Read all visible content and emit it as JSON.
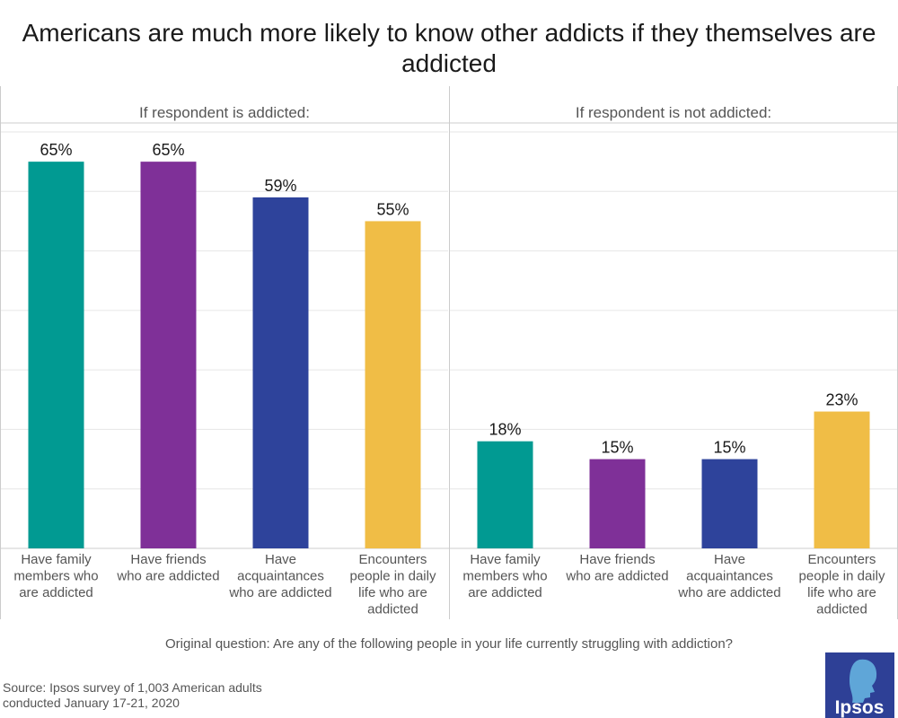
{
  "title": "Americans are much more likely to know other addicts if they themselves are addicted",
  "question": "Original question: Are any of the following people in your life currently struggling with addiction?",
  "source_line1": "Source: Ipsos survey of 1,003 American adults",
  "source_line2": "conducted January 17-21, 2020",
  "logo_text": "Ipsos",
  "colors": {
    "teal": "#019A92",
    "purple": "#7F3098",
    "blue": "#2E439B",
    "yellow": "#F0BD46",
    "grid": "#e6e6e6",
    "panel_border": "#cccccc",
    "logo_bg": "#2E4096"
  },
  "chart_data": [
    {
      "type": "bar",
      "panel_label": "If respondent is addicted:",
      "categories": [
        "Have family members who are addicted",
        "Have friends who are addicted",
        "Have acquaintances who are addicted",
        "Encounters people in daily life who are addicted"
      ],
      "category_lines": [
        [
          "Have family",
          "members who",
          "are addicted"
        ],
        [
          "Have friends",
          "who are addicted"
        ],
        [
          "Have",
          "acquaintances",
          "who are addicted"
        ],
        [
          "Encounters",
          "people in daily",
          "life who are",
          "addicted"
        ]
      ],
      "values": [
        65,
        65,
        59,
        55
      ],
      "value_labels": [
        "65%",
        "65%",
        "59%",
        "55%"
      ],
      "bar_colors": [
        "teal",
        "purple",
        "blue",
        "yellow"
      ],
      "ylim": [
        0,
        70
      ],
      "grid": true
    },
    {
      "type": "bar",
      "panel_label": "If respondent is not addicted:",
      "categories": [
        "Have family members who are addicted",
        "Have friends who are addicted",
        "Have acquaintances who are addicted",
        "Encounters people in daily life who are addicted"
      ],
      "category_lines": [
        [
          "Have family",
          "members who",
          "are addicted"
        ],
        [
          "Have friends",
          "who are addicted"
        ],
        [
          "Have",
          "acquaintances",
          "who are addicted"
        ],
        [
          "Encounters",
          "people in daily",
          "life who are",
          "addicted"
        ]
      ],
      "values": [
        18,
        15,
        15,
        23
      ],
      "value_labels": [
        "18%",
        "15%",
        "15%",
        "23%"
      ],
      "bar_colors": [
        "teal",
        "purple",
        "blue",
        "yellow"
      ],
      "ylim": [
        0,
        70
      ],
      "grid": true
    }
  ]
}
